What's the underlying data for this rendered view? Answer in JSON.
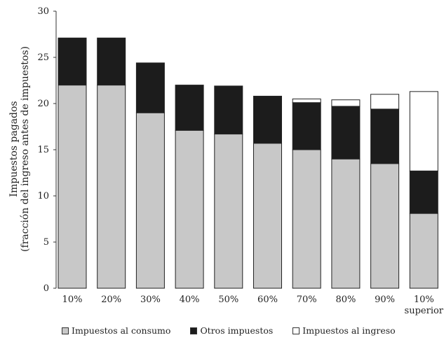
{
  "chart_data": {
    "type": "bar",
    "stacked": true,
    "title": "",
    "ylabel_line1": "Impuestos pagados",
    "ylabel_line2": "(fracción del ingreso antes de impuestos)",
    "xlabel": "",
    "ylim": [
      0,
      30
    ],
    "yticks": [
      "0",
      "5",
      "10",
      "15",
      "20",
      "25",
      "30"
    ],
    "categories": [
      "10%",
      "20%",
      "30%",
      "40%",
      "50%",
      "60%",
      "70%",
      "80%",
      "90%",
      "10%\nsuperior"
    ],
    "series": [
      {
        "name": "Impuestos al consumo",
        "color": "#c8c8c8",
        "values": [
          22.0,
          22.0,
          19.0,
          17.1,
          16.7,
          15.7,
          15.0,
          14.0,
          13.5,
          8.1
        ]
      },
      {
        "name": "Otros impuestos",
        "color": "#1c1c1c",
        "values": [
          5.1,
          5.1,
          5.4,
          4.9,
          5.2,
          5.1,
          5.1,
          5.7,
          5.9,
          4.6
        ]
      },
      {
        "name": "Impuestos al ingreso",
        "color": "#ffffff",
        "values": [
          0.0,
          0.0,
          0.0,
          0.0,
          0.0,
          0.0,
          0.4,
          0.7,
          1.6,
          8.6
        ]
      }
    ],
    "grid": false,
    "legend_position": "bottom"
  },
  "legend": {
    "items": [
      {
        "label": "Impuestos al consumo",
        "color": "#c8c8c8"
      },
      {
        "label": "Otros impuestos",
        "color": "#1c1c1c"
      },
      {
        "label": "Impuestos al ingreso",
        "color": "#ffffff"
      }
    ]
  }
}
